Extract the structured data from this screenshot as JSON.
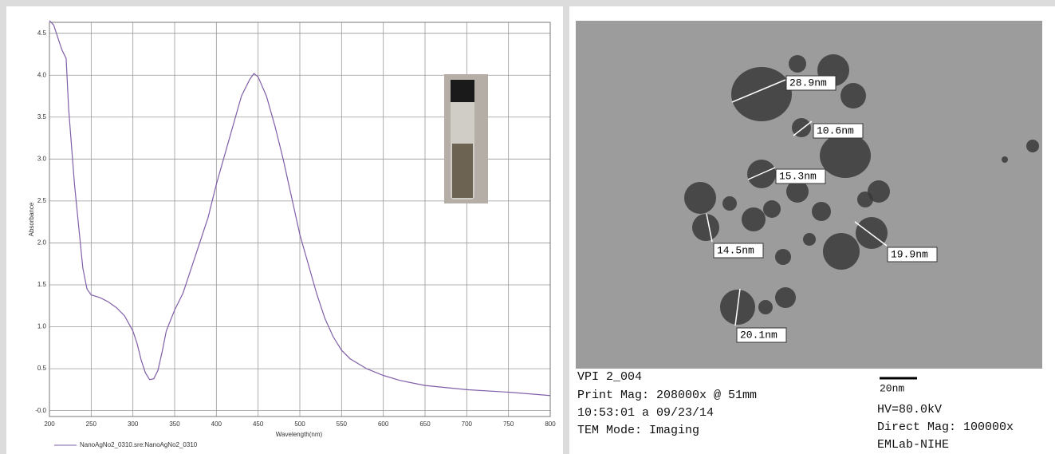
{
  "chart_data": {
    "type": "line",
    "y_label": "Absorbance",
    "x_label": "Wavelength(nm)",
    "x": [
      200,
      205,
      210,
      215,
      220,
      223,
      230,
      240,
      245,
      250,
      260,
      270,
      280,
      290,
      300,
      305,
      310,
      315,
      320,
      325,
      330,
      335,
      340,
      350,
      360,
      370,
      380,
      390,
      400,
      410,
      420,
      430,
      440,
      445,
      450,
      460,
      470,
      480,
      490,
      500,
      510,
      520,
      530,
      540,
      550,
      560,
      580,
      600,
      620,
      650,
      700,
      750,
      800
    ],
    "series": [
      {
        "name": "NanoAgNo2_0310.sre:NanoAgNo2_0310",
        "color": "#7f5fa8",
        "values": [
          4.65,
          4.6,
          4.45,
          4.3,
          4.2,
          3.6,
          2.7,
          1.7,
          1.45,
          1.38,
          1.35,
          1.3,
          1.23,
          1.13,
          0.95,
          0.8,
          0.6,
          0.45,
          0.37,
          0.38,
          0.48,
          0.7,
          0.95,
          1.2,
          1.4,
          1.7,
          2.0,
          2.3,
          2.7,
          3.05,
          3.4,
          3.75,
          3.95,
          4.02,
          3.98,
          3.75,
          3.4,
          3.0,
          2.55,
          2.1,
          1.75,
          1.4,
          1.1,
          0.88,
          0.72,
          0.62,
          0.5,
          0.42,
          0.36,
          0.3,
          0.25,
          0.22,
          0.18
        ]
      }
    ],
    "xlim": [
      200,
      800
    ],
    "xticks": [
      200,
      250,
      300,
      350,
      400,
      450,
      500,
      550,
      600,
      650,
      700,
      750,
      800
    ],
    "ylim": [
      -0.07,
      4.63
    ],
    "yticks": [
      {
        "value": 0,
        "label": "-0.0"
      },
      0.5,
      {
        "value": 1,
        "label": "1.0"
      },
      1.5,
      {
        "value": 2,
        "label": "2.0"
      },
      2.5,
      {
        "value": 3,
        "label": "3.0"
      },
      3.5,
      {
        "value": 4,
        "label": "4.0"
      },
      4.5
    ],
    "grid": true
  },
  "tem_panel": {
    "measurements": [
      "28.9nm",
      "10.6nm",
      "15.3nm",
      "14.5nm",
      "19.9nm",
      "20.1nm"
    ],
    "info_left": [
      "VPI 2_004",
      "Print Mag: 208000x @ 51mm",
      "10:53:01 a 09/23/14",
      "TEM Mode: Imaging"
    ],
    "scale_bar": "20nm",
    "info_right": [
      "HV=80.0kV",
      "Direct Mag: 100000x",
      "EMLab-NIHE"
    ]
  }
}
